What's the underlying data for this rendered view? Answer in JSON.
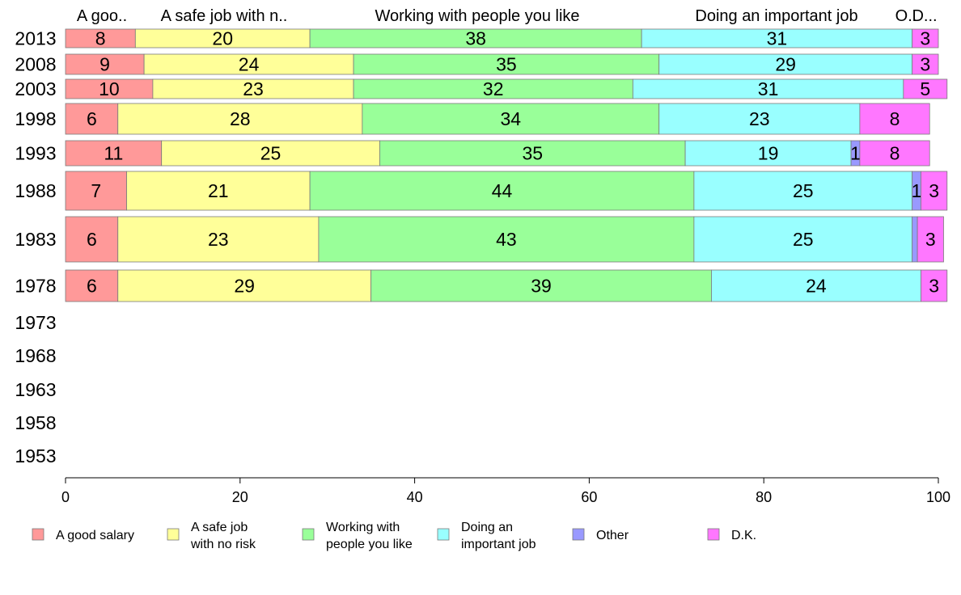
{
  "chart_data": {
    "type": "bar",
    "orientation": "horizontal",
    "stacked": true,
    "title": "",
    "xlabel": "",
    "ylabel": "",
    "xlim": [
      0,
      100
    ],
    "x_ticks": [
      "0",
      "20",
      "40",
      "60",
      "80",
      "100"
    ],
    "grid": false,
    "legend_position": "bottom",
    "categories": [
      "2013",
      "2008",
      "2003",
      "1998",
      "1993",
      "1988",
      "1983",
      "1978",
      "1973",
      "1968",
      "1963",
      "1958",
      "1953"
    ],
    "series": [
      {
        "name": "A good salary",
        "legend_lines": [
          "A good salary"
        ],
        "header_label": "A goo..",
        "color": "#ff9999",
        "values": [
          8,
          9,
          10,
          6,
          11,
          7,
          6,
          6,
          null,
          null,
          null,
          null,
          null
        ]
      },
      {
        "name": "A safe job with no risk",
        "legend_lines": [
          "A safe job",
          "with no risk"
        ],
        "header_label": "A safe job with n..",
        "color": "#ffff99",
        "values": [
          20,
          24,
          23,
          28,
          25,
          21,
          23,
          29,
          null,
          null,
          null,
          null,
          null
        ]
      },
      {
        "name": "Working with people you like",
        "legend_lines": [
          "Working with",
          "people you like"
        ],
        "header_label": "Working with people you like",
        "color": "#99ff99",
        "values": [
          38,
          35,
          32,
          34,
          35,
          44,
          43,
          39,
          null,
          null,
          null,
          null,
          null
        ]
      },
      {
        "name": "Doing an important job",
        "legend_lines": [
          "Doing an",
          "important job"
        ],
        "header_label": "Doing an important job",
        "color": "#99ffff",
        "values": [
          31,
          29,
          31,
          23,
          19,
          25,
          25,
          24,
          null,
          null,
          null,
          null,
          null
        ]
      },
      {
        "name": "Other",
        "legend_lines": [
          "Other"
        ],
        "header_label": "O..",
        "color": "#9999ff",
        "values": [
          0,
          0,
          0,
          0,
          1,
          1,
          0.6,
          0,
          null,
          null,
          null,
          null,
          null
        ]
      },
      {
        "name": "D.K.",
        "legend_lines": [
          "D.K."
        ],
        "header_label": "D...",
        "color": "#ff77ff",
        "values": [
          3,
          3,
          5,
          8,
          8,
          3,
          3,
          3,
          null,
          null,
          null,
          null,
          null
        ]
      }
    ],
    "data_labels": [
      [
        "8",
        "20",
        "38",
        "31",
        "",
        "3"
      ],
      [
        "9",
        "24",
        "35",
        "29",
        "",
        "3"
      ],
      [
        "10",
        "23",
        "32",
        "31",
        "",
        "5"
      ],
      [
        "6",
        "28",
        "34",
        "23",
        "",
        "8"
      ],
      [
        "11",
        "25",
        "35",
        "19",
        "1",
        "8"
      ],
      [
        "7",
        "21",
        "44",
        "25",
        "1",
        "3"
      ],
      [
        "6",
        "23",
        "43",
        "25",
        "",
        "3"
      ],
      [
        "6",
        "29",
        "39",
        "24",
        "",
        "3"
      ],
      [],
      [],
      [],
      [],
      []
    ]
  }
}
